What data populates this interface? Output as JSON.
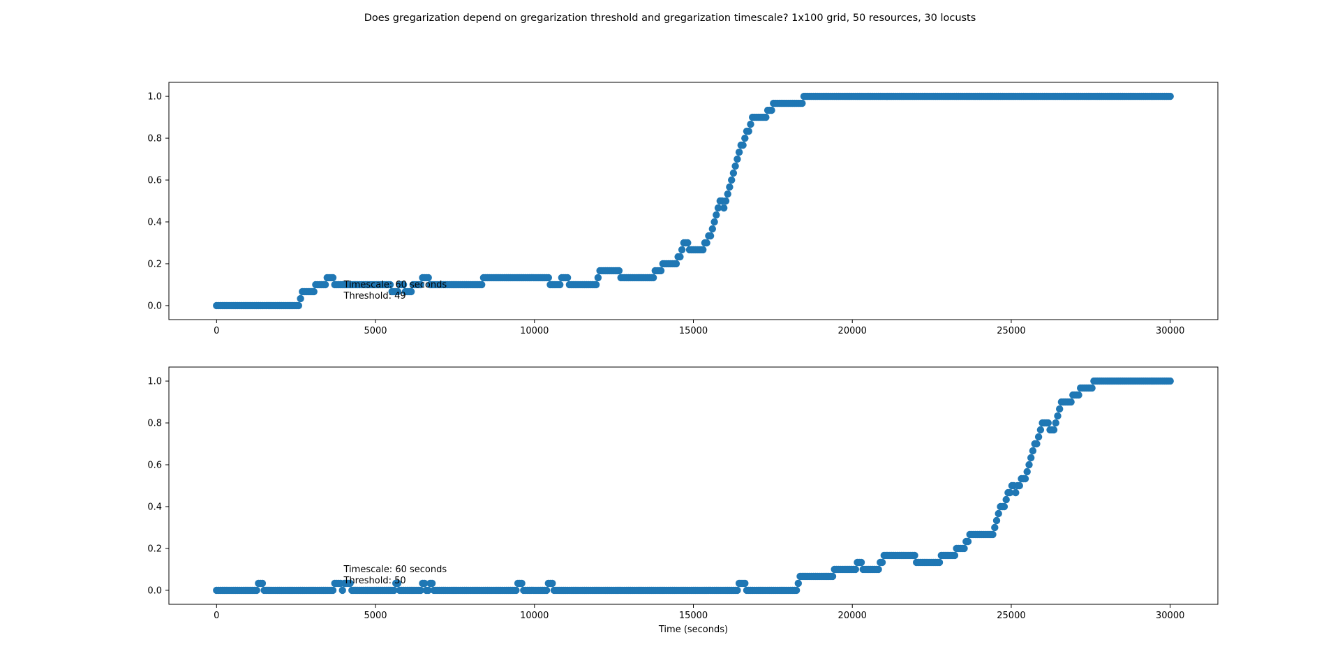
{
  "figure": {
    "title": "Does gregarization depend on gregarization threshold and gregarization timescale? 1x100 grid, 50 resources, 30 locusts"
  },
  "colors": {
    "series": "#1f77b4",
    "axes": "#000000",
    "background": "#ffffff"
  },
  "chart_data": [
    {
      "type": "scatter",
      "xlabel": "",
      "ylabel": "",
      "xlim": [
        -1500,
        31500
      ],
      "ylim": [
        -0.067,
        1.067
      ],
      "xticks": [
        0,
        5000,
        10000,
        15000,
        20000,
        25000,
        30000
      ],
      "xtick_labels": [
        "0",
        "5000",
        "10000",
        "15000",
        "20000",
        "25000",
        "30000"
      ],
      "yticks": [
        0.0,
        0.2,
        0.4,
        0.6,
        0.8,
        1.0
      ],
      "ytick_labels": [
        "0.0",
        "0.2",
        "0.4",
        "0.6",
        "0.8",
        "1.0"
      ],
      "annotation": [
        "Timescale: 60 seconds",
        "Threshold: 49"
      ],
      "annotation_at": [
        4000,
        0.1
      ],
      "grid": false,
      "legend": "none",
      "sample_interval": 60,
      "steps": [
        [
          0,
          0.0
        ],
        [
          2640,
          0.0333
        ],
        [
          2700,
          0.0667
        ],
        [
          3120,
          0.1
        ],
        [
          3480,
          0.1333
        ],
        [
          3720,
          0.1
        ],
        [
          5520,
          0.0667
        ],
        [
          5760,
          0.1
        ],
        [
          5940,
          0.0667
        ],
        [
          6180,
          0.1
        ],
        [
          6480,
          0.1333
        ],
        [
          6720,
          0.1
        ],
        [
          8400,
          0.1333
        ],
        [
          10500,
          0.1
        ],
        [
          10860,
          0.1333
        ],
        [
          11100,
          0.1
        ],
        [
          12000,
          0.1333
        ],
        [
          12060,
          0.1667
        ],
        [
          12720,
          0.1333
        ],
        [
          13800,
          0.1667
        ],
        [
          14040,
          0.2
        ],
        [
          14520,
          0.2333
        ],
        [
          14640,
          0.2667
        ],
        [
          14700,
          0.3
        ],
        [
          14880,
          0.2667
        ],
        [
          15360,
          0.3
        ],
        [
          15480,
          0.3333
        ],
        [
          15600,
          0.3667
        ],
        [
          15660,
          0.4
        ],
        [
          15720,
          0.4333
        ],
        [
          15780,
          0.4667
        ],
        [
          15840,
          0.5
        ],
        [
          15960,
          0.4667
        ],
        [
          16020,
          0.5
        ],
        [
          16080,
          0.5333
        ],
        [
          16140,
          0.5667
        ],
        [
          16200,
          0.6
        ],
        [
          16260,
          0.6333
        ],
        [
          16320,
          0.6667
        ],
        [
          16380,
          0.7
        ],
        [
          16440,
          0.7333
        ],
        [
          16500,
          0.7667
        ],
        [
          16620,
          0.8
        ],
        [
          16680,
          0.8333
        ],
        [
          16800,
          0.8667
        ],
        [
          16860,
          0.9
        ],
        [
          17340,
          0.9333
        ],
        [
          17520,
          0.9667
        ],
        [
          18480,
          1.0
        ],
        [
          30000,
          1.0
        ]
      ]
    },
    {
      "type": "scatter",
      "xlabel": "Time (seconds)",
      "ylabel": "",
      "xlim": [
        -1500,
        31500
      ],
      "ylim": [
        -0.067,
        1.067
      ],
      "xticks": [
        0,
        5000,
        10000,
        15000,
        20000,
        25000,
        30000
      ],
      "xtick_labels": [
        "0",
        "5000",
        "10000",
        "15000",
        "20000",
        "25000",
        "30000"
      ],
      "yticks": [
        0.0,
        0.2,
        0.4,
        0.6,
        0.8,
        1.0
      ],
      "ytick_labels": [
        "0.0",
        "0.2",
        "0.4",
        "0.6",
        "0.8",
        "1.0"
      ],
      "annotation": [
        "Timescale: 60 seconds",
        "Threshold: 50"
      ],
      "annotation_at": [
        4000,
        0.1
      ],
      "grid": false,
      "legend": "none",
      "sample_interval": 60,
      "steps": [
        [
          0,
          0.0
        ],
        [
          1320,
          0.0333
        ],
        [
          1500,
          0.0
        ],
        [
          3720,
          0.0333
        ],
        [
          3960,
          0.0
        ],
        [
          4020,
          0.0333
        ],
        [
          4260,
          0.0
        ],
        [
          5640,
          0.0333
        ],
        [
          5760,
          0.0
        ],
        [
          6480,
          0.0333
        ],
        [
          6600,
          0.0
        ],
        [
          6720,
          0.0333
        ],
        [
          6840,
          0.0
        ],
        [
          9480,
          0.0333
        ],
        [
          9660,
          0.0
        ],
        [
          10440,
          0.0333
        ],
        [
          10620,
          0.0
        ],
        [
          16440,
          0.0333
        ],
        [
          16680,
          0.0
        ],
        [
          18300,
          0.0333
        ],
        [
          18360,
          0.0667
        ],
        [
          19440,
          0.1
        ],
        [
          20160,
          0.1333
        ],
        [
          20340,
          0.1
        ],
        [
          20880,
          0.1333
        ],
        [
          21000,
          0.1667
        ],
        [
          22020,
          0.1333
        ],
        [
          22800,
          0.1667
        ],
        [
          23280,
          0.2
        ],
        [
          23580,
          0.2333
        ],
        [
          23700,
          0.2667
        ],
        [
          24480,
          0.3
        ],
        [
          24540,
          0.3333
        ],
        [
          24600,
          0.3667
        ],
        [
          24660,
          0.4
        ],
        [
          24840,
          0.4333
        ],
        [
          24900,
          0.4667
        ],
        [
          25020,
          0.5
        ],
        [
          25140,
          0.4667
        ],
        [
          25200,
          0.5
        ],
        [
          25320,
          0.5333
        ],
        [
          25500,
          0.5667
        ],
        [
          25560,
          0.6
        ],
        [
          25620,
          0.6333
        ],
        [
          25680,
          0.6667
        ],
        [
          25740,
          0.7
        ],
        [
          25860,
          0.7333
        ],
        [
          25920,
          0.7667
        ],
        [
          25980,
          0.8
        ],
        [
          26220,
          0.7667
        ],
        [
          26400,
          0.8
        ],
        [
          26460,
          0.8333
        ],
        [
          26520,
          0.8667
        ],
        [
          26580,
          0.9
        ],
        [
          26940,
          0.9333
        ],
        [
          27180,
          0.9667
        ],
        [
          27600,
          1.0
        ],
        [
          30000,
          1.0
        ]
      ]
    }
  ]
}
